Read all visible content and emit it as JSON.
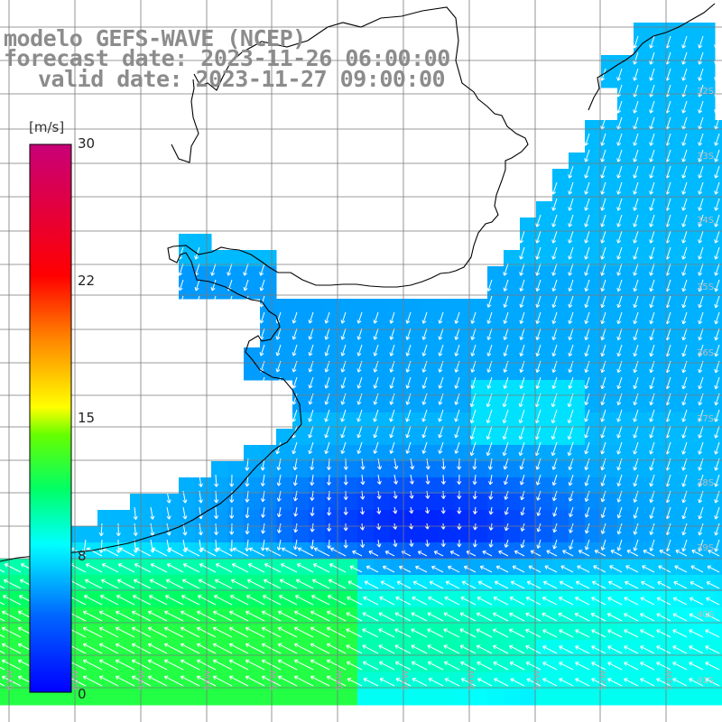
{
  "header": {
    "model_title": "modelo GEFS-WAVE (NCEP)",
    "forecast_line": "forecast date: 2023-11-26 06:00:00",
    "valid_line": "valid date: 2023-11-27 09:00:00"
  },
  "colorbar": {
    "unit": "[m/s]",
    "ticks": [
      {
        "label": "30",
        "value": 30
      },
      {
        "label": "22",
        "value": 22
      },
      {
        "label": "15",
        "value": 15
      },
      {
        "label": "8",
        "value": 8
      },
      {
        "label": "0",
        "value": 0
      }
    ],
    "min": 0,
    "max": 30,
    "colors": {
      "v0": "#0000ff",
      "v8": "#00ffff",
      "v15": "#ffff00",
      "v22": "#ff0000",
      "v30": "#c80078"
    }
  },
  "map": {
    "lat_labels": [
      "32S",
      "33S",
      "34S",
      "35S",
      "36S",
      "37S",
      "38S",
      "39S",
      "40S",
      "41S"
    ],
    "lon_labels": [
      "61W",
      "60W",
      "59W",
      "58W",
      "57W",
      "56W",
      "55W",
      "54W",
      "53W",
      "52W",
      "51W"
    ],
    "colors": {
      "land": "#ffffff",
      "coastline": "#000000",
      "grid": "#7a7a7a",
      "arrows": "#ffffff",
      "lat_label": "#bdbdbd",
      "lon_label": "#a8a8a8"
    }
  }
}
